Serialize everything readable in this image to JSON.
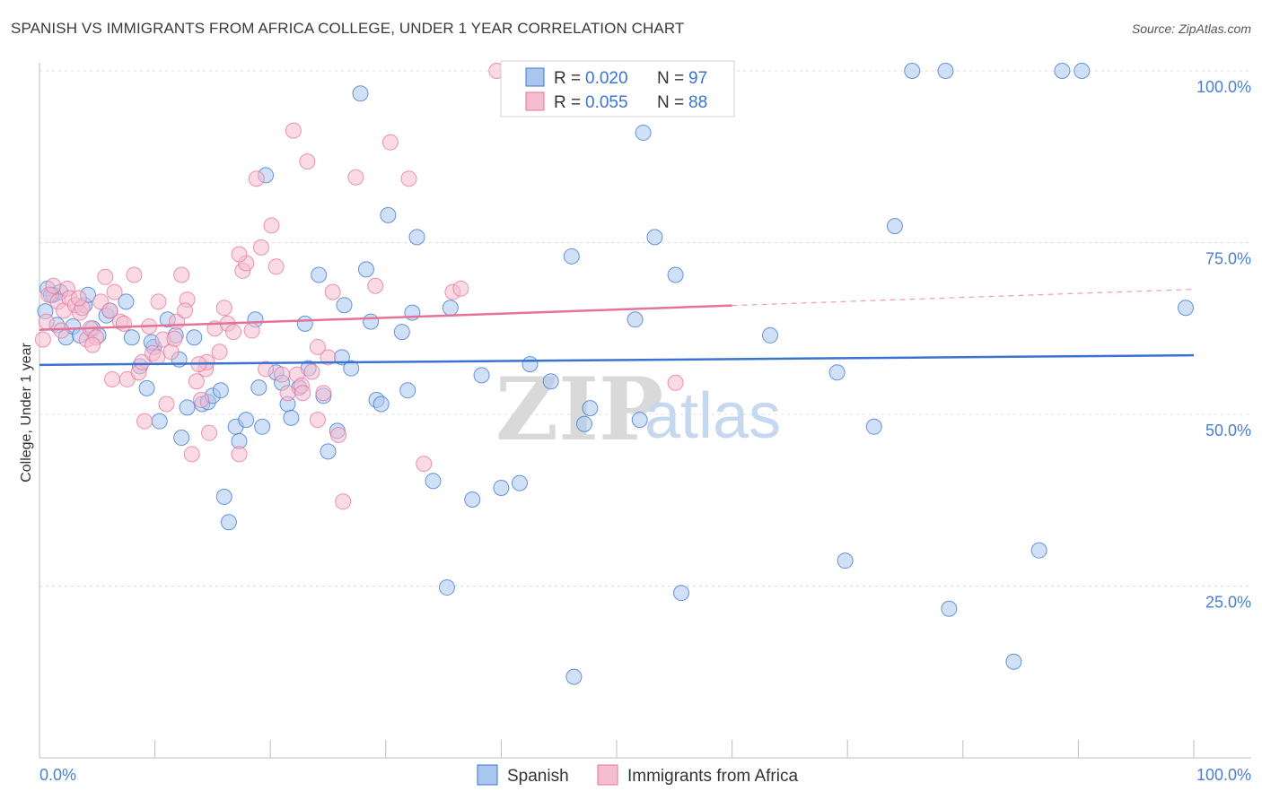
{
  "title": "SPANISH VS IMMIGRANTS FROM AFRICA COLLEGE, UNDER 1 YEAR CORRELATION CHART",
  "source": "Source: ZipAtlas.com",
  "colors": {
    "blue": "#3a74d0",
    "blue_fill": "#a9c6ee",
    "pink": "#e4739a",
    "pink_fill": "#f6bcd0",
    "grid": "#dddddd",
    "axis_label": "#4a7fcf"
  },
  "legend": {
    "spanish": {
      "r_label": "R =",
      "r_value": "0.020",
      "n_label": "N =",
      "n_value": "97"
    },
    "africa": {
      "r_label": "R =",
      "r_value": "0.055",
      "n_label": "N =",
      "n_value": "88"
    }
  },
  "bottom_legend": {
    "spanish": "Spanish",
    "africa": "Immigrants from Africa"
  },
  "watermark": {
    "zip": "ZIP",
    "atlas": "atlas"
  },
  "chart_data": {
    "type": "scatter",
    "title": "SPANISH VS IMMIGRANTS FROM AFRICA COLLEGE, UNDER 1 YEAR CORRELATION CHART",
    "xlabel": "",
    "ylabel": "College, Under 1 year",
    "xlim": [
      0,
      100
    ],
    "ylim": [
      0,
      102.5
    ],
    "x_tick_labels": [
      "0.0%",
      "100.0%"
    ],
    "y_ticks": [
      25,
      50,
      75,
      100
    ],
    "y_tick_labels": [
      "25.0%",
      "50.0%",
      "75.0%",
      "100.0%"
    ],
    "series": [
      {
        "name": "Spanish",
        "color": "#3a74d0",
        "trend": {
          "x": [
            0,
            100
          ],
          "y": [
            57.2,
            58.6
          ],
          "dashed_from": null
        },
        "points": [
          [
            0.5,
            65
          ],
          [
            0.7,
            68.3
          ],
          [
            1.2,
            67.4
          ],
          [
            1.5,
            63
          ],
          [
            1.8,
            67.8
          ],
          [
            2.3,
            61.2
          ],
          [
            2.9,
            62.8
          ],
          [
            3.5,
            61.5
          ],
          [
            3.9,
            65.9
          ],
          [
            4.2,
            67.4
          ],
          [
            4.6,
            62.5
          ],
          [
            5.1,
            61.5
          ],
          [
            5.8,
            64.4
          ],
          [
            6.1,
            65.1
          ],
          [
            7.5,
            66.4
          ],
          [
            8,
            61.2
          ],
          [
            8.7,
            57
          ],
          [
            9.3,
            53.8
          ],
          [
            9.9,
            59.8
          ],
          [
            10.4,
            49
          ],
          [
            11.1,
            63.8
          ],
          [
            11.8,
            61.5
          ],
          [
            12.3,
            46.6
          ],
          [
            12.8,
            51
          ],
          [
            13.4,
            61.2
          ],
          [
            14.1,
            51.5
          ],
          [
            14.6,
            51.8
          ],
          [
            15,
            52.7
          ],
          [
            15.7,
            53.5
          ],
          [
            16,
            38
          ],
          [
            16.4,
            34.3
          ],
          [
            17,
            48.2
          ],
          [
            17.3,
            46.1
          ],
          [
            17.9,
            49.2
          ],
          [
            18.7,
            63.8
          ],
          [
            19,
            53.9
          ],
          [
            19.3,
            48.2
          ],
          [
            19.6,
            84.8
          ],
          [
            20.5,
            56.1
          ],
          [
            21,
            54.6
          ],
          [
            21.5,
            51.5
          ],
          [
            21.8,
            49.5
          ],
          [
            22.5,
            53.9
          ],
          [
            23,
            63.2
          ],
          [
            23.3,
            56.7
          ],
          [
            24.2,
            70.3
          ],
          [
            24.6,
            52.7
          ],
          [
            25,
            44.6
          ],
          [
            25.8,
            47.6
          ],
          [
            26.4,
            65.9
          ],
          [
            26.2,
            58.3
          ],
          [
            27,
            56.7
          ],
          [
            27.8,
            96.7
          ],
          [
            28.3,
            71.1
          ],
          [
            28.7,
            63.5
          ],
          [
            29.2,
            52.1
          ],
          [
            29.6,
            51.5
          ],
          [
            30.2,
            79
          ],
          [
            31.4,
            62
          ],
          [
            31.9,
            53.5
          ],
          [
            32.3,
            64.8
          ],
          [
            32.7,
            75.8
          ],
          [
            34.1,
            40.3
          ],
          [
            35.3,
            24.8
          ],
          [
            35.6,
            65.5
          ],
          [
            37.5,
            37.6
          ],
          [
            38.3,
            55.7
          ],
          [
            40,
            39.3
          ],
          [
            41.6,
            40
          ],
          [
            42.5,
            57.3
          ],
          [
            44.3,
            54.8
          ],
          [
            46.1,
            73
          ],
          [
            46.3,
            11.8
          ],
          [
            47.2,
            48.6
          ],
          [
            47.7,
            50.9
          ],
          [
            51.6,
            63.8
          ],
          [
            52,
            49.2
          ],
          [
            52.3,
            91
          ],
          [
            53.3,
            75.8
          ],
          [
            55.1,
            70.3
          ],
          [
            55.6,
            24
          ],
          [
            63.3,
            61.5
          ],
          [
            69.1,
            56.1
          ],
          [
            69.8,
            28.7
          ],
          [
            72.3,
            48.2
          ],
          [
            74.1,
            77.4
          ],
          [
            75.6,
            100
          ],
          [
            78.5,
            100
          ],
          [
            78.8,
            21.7
          ],
          [
            84.4,
            14
          ],
          [
            86.6,
            30.2
          ],
          [
            88.6,
            100
          ],
          [
            90.3,
            100
          ],
          [
            99.3,
            65.5
          ],
          [
            1,
            67.4
          ],
          [
            12.1,
            58
          ],
          [
            9.7,
            60.5
          ]
        ]
      },
      {
        "name": "Immigrants from Africa",
        "color": "#e4739a",
        "trend": {
          "x": [
            0,
            100
          ],
          "y": [
            62.3,
            68.2
          ],
          "dashed_from": 60
        },
        "points": [
          [
            0.3,
            60.9
          ],
          [
            0.8,
            67.4
          ],
          [
            1.2,
            68.7
          ],
          [
            1.6,
            66.4
          ],
          [
            2.1,
            65.1
          ],
          [
            2.4,
            68.3
          ],
          [
            2.6,
            66.9
          ],
          [
            3.1,
            65.9
          ],
          [
            3.5,
            64.8
          ],
          [
            3.7,
            65.5
          ],
          [
            4.1,
            60.9
          ],
          [
            4.4,
            62.5
          ],
          [
            4.9,
            61.2
          ],
          [
            5.3,
            66.4
          ],
          [
            5.7,
            70
          ],
          [
            6.1,
            65.1
          ],
          [
            6.5,
            67.8
          ],
          [
            7,
            63.5
          ],
          [
            7.3,
            63.2
          ],
          [
            7.6,
            55.1
          ],
          [
            8.2,
            70.3
          ],
          [
            8.6,
            56.1
          ],
          [
            8.9,
            57.6
          ],
          [
            9.5,
            62.8
          ],
          [
            9.8,
            58.9
          ],
          [
            10.3,
            66.4
          ],
          [
            10.7,
            60.9
          ],
          [
            11,
            51.5
          ],
          [
            11.4,
            59.1
          ],
          [
            11.9,
            63.5
          ],
          [
            12.3,
            70.3
          ],
          [
            12.8,
            66.7
          ],
          [
            13.2,
            44.2
          ],
          [
            13.6,
            54.8
          ],
          [
            14,
            52.1
          ],
          [
            14.4,
            56.6
          ],
          [
            14.7,
            47.3
          ],
          [
            15.2,
            62.5
          ],
          [
            15.6,
            59.1
          ],
          [
            16,
            65.5
          ],
          [
            16.3,
            63.2
          ],
          [
            16.8,
            62
          ],
          [
            17.3,
            44.2
          ],
          [
            17.6,
            70.9
          ],
          [
            17.9,
            72
          ],
          [
            18.4,
            62.2
          ],
          [
            18.8,
            84.3
          ],
          [
            19.2,
            74.3
          ],
          [
            19.6,
            56.6
          ],
          [
            20.1,
            77.5
          ],
          [
            20.5,
            71.5
          ],
          [
            21,
            55.8
          ],
          [
            21.5,
            53.1
          ],
          [
            22,
            91.3
          ],
          [
            22.3,
            55.8
          ],
          [
            22.7,
            54.2
          ],
          [
            23.2,
            86.8
          ],
          [
            23.6,
            56.2
          ],
          [
            24.1,
            49.2
          ],
          [
            24.6,
            53.1
          ],
          [
            25,
            58.3
          ],
          [
            25.4,
            67.8
          ],
          [
            25.9,
            47
          ],
          [
            26.3,
            37.3
          ],
          [
            27.4,
            84.5
          ],
          [
            29.1,
            68.7
          ],
          [
            30.4,
            89.6
          ],
          [
            32,
            84.3
          ],
          [
            33.3,
            42.8
          ],
          [
            35.8,
            67.8
          ],
          [
            36.5,
            68.3
          ],
          [
            39.6,
            100
          ],
          [
            45.8,
            100
          ],
          [
            55.1,
            54.6
          ],
          [
            22.8,
            53.1
          ],
          [
            14.5,
            57.6
          ],
          [
            9.1,
            49
          ],
          [
            6.3,
            55.1
          ],
          [
            11.7,
            61
          ],
          [
            4.6,
            60.1
          ],
          [
            1.9,
            62.2
          ],
          [
            24.1,
            59.8
          ],
          [
            13.8,
            57.3
          ],
          [
            12.6,
            65.1
          ],
          [
            17.3,
            73.3
          ],
          [
            10.2,
            58.3
          ],
          [
            3.4,
            66.9
          ],
          [
            0.6,
            63.5
          ]
        ]
      }
    ]
  }
}
